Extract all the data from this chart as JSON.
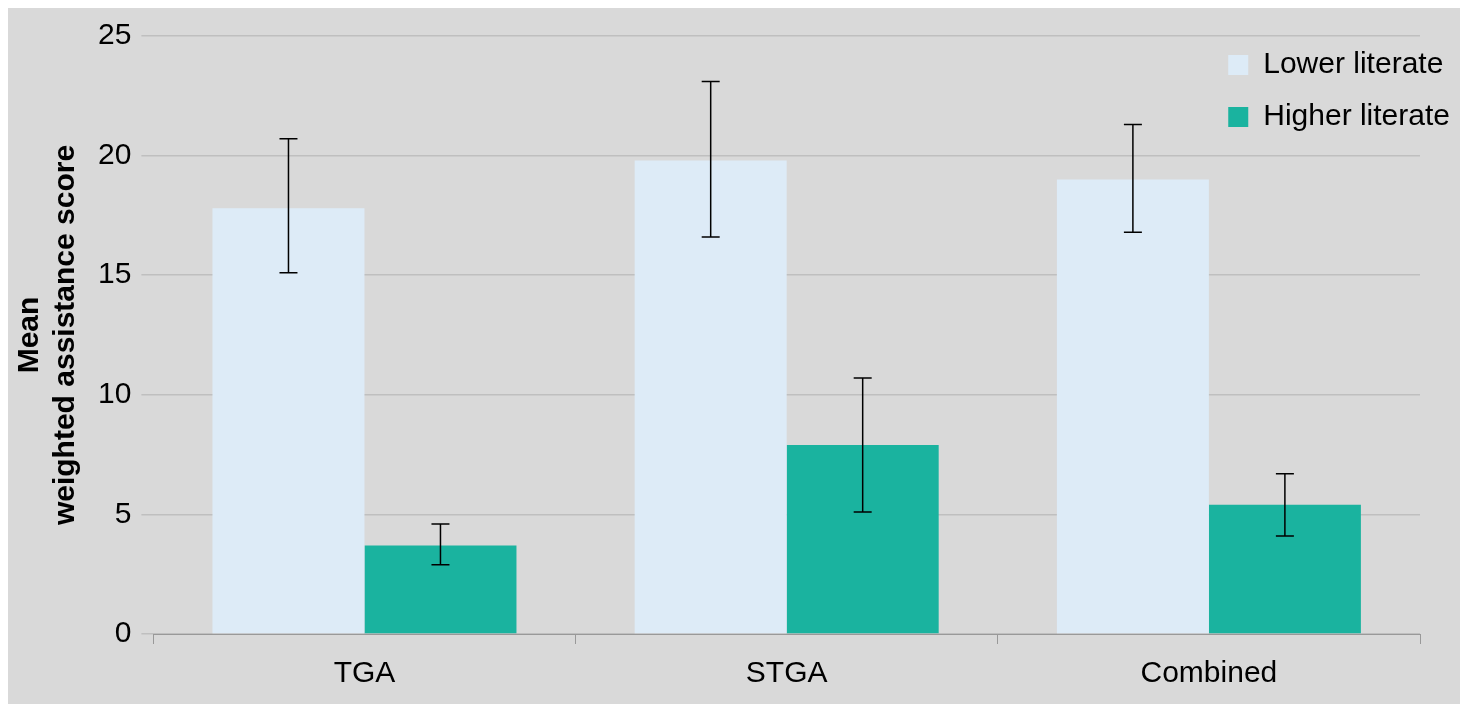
{
  "chart_data": {
    "type": "bar",
    "ylabel": "Mean\nweighted assistance score",
    "categories": [
      "TGA",
      "STGA",
      "Combined"
    ],
    "series": [
      {
        "name": "Lower literate",
        "color": "#ddebf7",
        "values": [
          17.8,
          19.8,
          19.0
        ],
        "errors": [
          [
            15.1,
            20.7
          ],
          [
            16.6,
            23.1
          ],
          [
            16.8,
            21.3
          ]
        ]
      },
      {
        "name": "Higher literate",
        "color": "#1ab39f",
        "values": [
          3.7,
          7.9,
          5.4
        ],
        "errors": [
          [
            2.9,
            4.6
          ],
          [
            5.1,
            10.7
          ],
          [
            4.1,
            6.7
          ]
        ]
      }
    ],
    "ylim": [
      0,
      25
    ],
    "yticks": [
      0,
      5,
      10,
      15,
      20,
      25
    ],
    "grid": "y",
    "legend": "top right"
  }
}
